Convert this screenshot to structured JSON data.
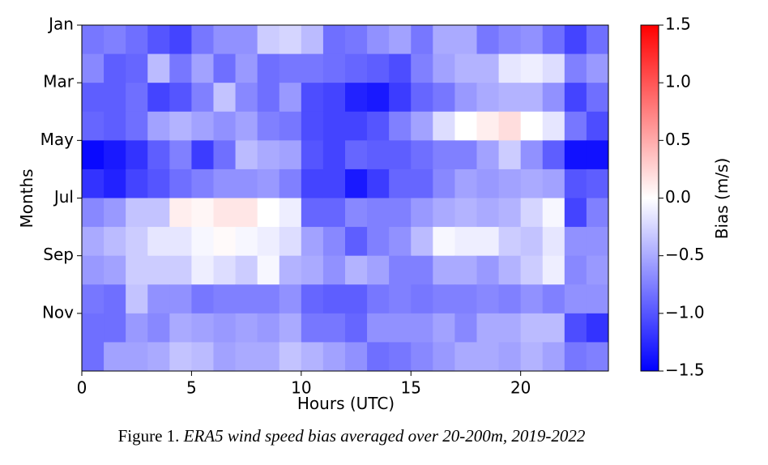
{
  "chart_data": {
    "type": "heatmap",
    "xlabel": "Hours (UTC)",
    "ylabel": "Months",
    "xlim": [
      0,
      24
    ],
    "xticks": [
      0,
      5,
      10,
      15,
      20
    ],
    "ylim": [
      12,
      0
    ],
    "yticks": [
      {
        "value": 0,
        "label": "Jan"
      },
      {
        "value": 2,
        "label": "Mar"
      },
      {
        "value": 4,
        "label": "May"
      },
      {
        "value": 6,
        "label": "Jul"
      },
      {
        "value": 8,
        "label": "Sep"
      },
      {
        "value": 10,
        "label": "Nov"
      }
    ],
    "colormap": "bwr",
    "colorbar": {
      "label": "Bias (m/s)",
      "clim": [
        -1.5,
        1.5
      ],
      "ticks": [
        {
          "value": -1.5,
          "label": "−1.5"
        },
        {
          "value": -1,
          "label": "−1.0"
        },
        {
          "value": -0.5,
          "label": "−0.5"
        },
        {
          "value": 0,
          "label": "0.0"
        },
        0.5,
        {
          "value": 1,
          "label": "1.0"
        },
        1.5
      ]
    },
    "z": [
      [
        -0.8,
        -0.75,
        -0.85,
        -1.0,
        -1.1,
        -0.8,
        -0.65,
        -0.65,
        -0.3,
        -0.25,
        -0.4,
        -0.85,
        -0.8,
        -0.65,
        -0.55,
        -0.8,
        -0.5,
        -0.5,
        -0.8,
        -0.7,
        -0.65,
        -0.85,
        -1.1,
        -0.85
      ],
      [
        -0.7,
        -0.95,
        -0.9,
        -0.4,
        -0.8,
        -0.55,
        -0.85,
        -0.6,
        -0.85,
        -0.8,
        -0.8,
        -0.85,
        -0.9,
        -0.95,
        -1.05,
        -0.75,
        -0.55,
        -0.45,
        -0.45,
        -0.15,
        -0.1,
        -0.2,
        -0.75,
        -0.6
      ],
      [
        -0.95,
        -0.95,
        -0.85,
        -1.1,
        -1.0,
        -0.75,
        -0.35,
        -0.7,
        -0.85,
        -0.6,
        -1.05,
        -1.1,
        -1.3,
        -1.35,
        -1.15,
        -0.9,
        -0.8,
        -0.6,
        -0.5,
        -0.45,
        -0.45,
        -0.65,
        -1.1,
        -0.85
      ],
      [
        -0.9,
        -0.95,
        -0.85,
        -0.55,
        -0.45,
        -0.55,
        -0.65,
        -0.55,
        -0.75,
        -0.8,
        -1.05,
        -1.1,
        -1.1,
        -1.0,
        -0.75,
        -0.55,
        -0.2,
        0.0,
        0.1,
        0.2,
        0.0,
        -0.15,
        -0.8,
        -1.05
      ],
      [
        -1.45,
        -1.35,
        -1.2,
        -0.95,
        -0.75,
        -1.15,
        -0.85,
        -0.4,
        -0.5,
        -0.55,
        -1.0,
        -1.1,
        -0.9,
        -0.95,
        -0.95,
        -0.85,
        -0.75,
        -0.75,
        -0.55,
        -0.3,
        -0.65,
        -0.95,
        -1.4,
        -1.4
      ],
      [
        -1.2,
        -1.3,
        -1.1,
        -1.0,
        -0.85,
        -0.75,
        -0.65,
        -0.65,
        -0.6,
        -0.75,
        -1.1,
        -1.1,
        -1.35,
        -1.15,
        -0.9,
        -0.9,
        -0.7,
        -0.55,
        -0.6,
        -0.55,
        -0.5,
        -0.55,
        -1.0,
        -0.95
      ],
      [
        -0.7,
        -0.6,
        -0.35,
        -0.35,
        0.1,
        0.05,
        0.15,
        0.15,
        0.0,
        -0.1,
        -0.9,
        -0.9,
        -0.7,
        -0.75,
        -0.75,
        -0.6,
        -0.5,
        -0.45,
        -0.5,
        -0.45,
        -0.25,
        -0.05,
        -1.1,
        -0.75
      ],
      [
        -0.5,
        -0.4,
        -0.3,
        -0.15,
        -0.15,
        -0.05,
        0.03,
        -0.05,
        -0.1,
        -0.2,
        -0.55,
        -0.7,
        -0.95,
        -0.75,
        -0.65,
        -0.4,
        -0.05,
        -0.1,
        -0.1,
        -0.3,
        -0.35,
        -0.15,
        -0.65,
        -0.65
      ],
      [
        -0.6,
        -0.55,
        -0.3,
        -0.3,
        -0.3,
        -0.1,
        -0.2,
        -0.3,
        -0.05,
        -0.45,
        -0.5,
        -0.65,
        -0.45,
        -0.55,
        -0.75,
        -0.75,
        -0.5,
        -0.5,
        -0.6,
        -0.45,
        -0.3,
        -0.1,
        -0.7,
        -0.6
      ],
      [
        -0.8,
        -0.85,
        -0.35,
        -0.65,
        -0.65,
        -0.8,
        -0.75,
        -0.75,
        -0.75,
        -0.65,
        -0.9,
        -0.95,
        -0.95,
        -0.8,
        -0.75,
        -0.8,
        -0.75,
        -0.75,
        -0.7,
        -0.75,
        -0.65,
        -0.75,
        -0.65,
        -0.65
      ],
      [
        -0.85,
        -0.85,
        -0.6,
        -0.7,
        -0.5,
        -0.55,
        -0.6,
        -0.55,
        -0.6,
        -0.5,
        -0.8,
        -0.8,
        -0.9,
        -0.65,
        -0.65,
        -0.65,
        -0.55,
        -0.7,
        -0.5,
        -0.5,
        -0.4,
        -0.4,
        -1.05,
        -1.2
      ],
      [
        -0.85,
        -0.55,
        -0.55,
        -0.5,
        -0.35,
        -0.4,
        -0.55,
        -0.5,
        -0.5,
        -0.35,
        -0.45,
        -0.55,
        -0.65,
        -0.85,
        -0.8,
        -0.7,
        -0.6,
        -0.5,
        -0.5,
        -0.55,
        -0.45,
        -0.55,
        -0.8,
        -0.75
      ]
    ]
  },
  "caption": {
    "label": "Figure 1.",
    "text": "ERA5 wind speed bias averaged over 20-200m, 2019-2022"
  }
}
